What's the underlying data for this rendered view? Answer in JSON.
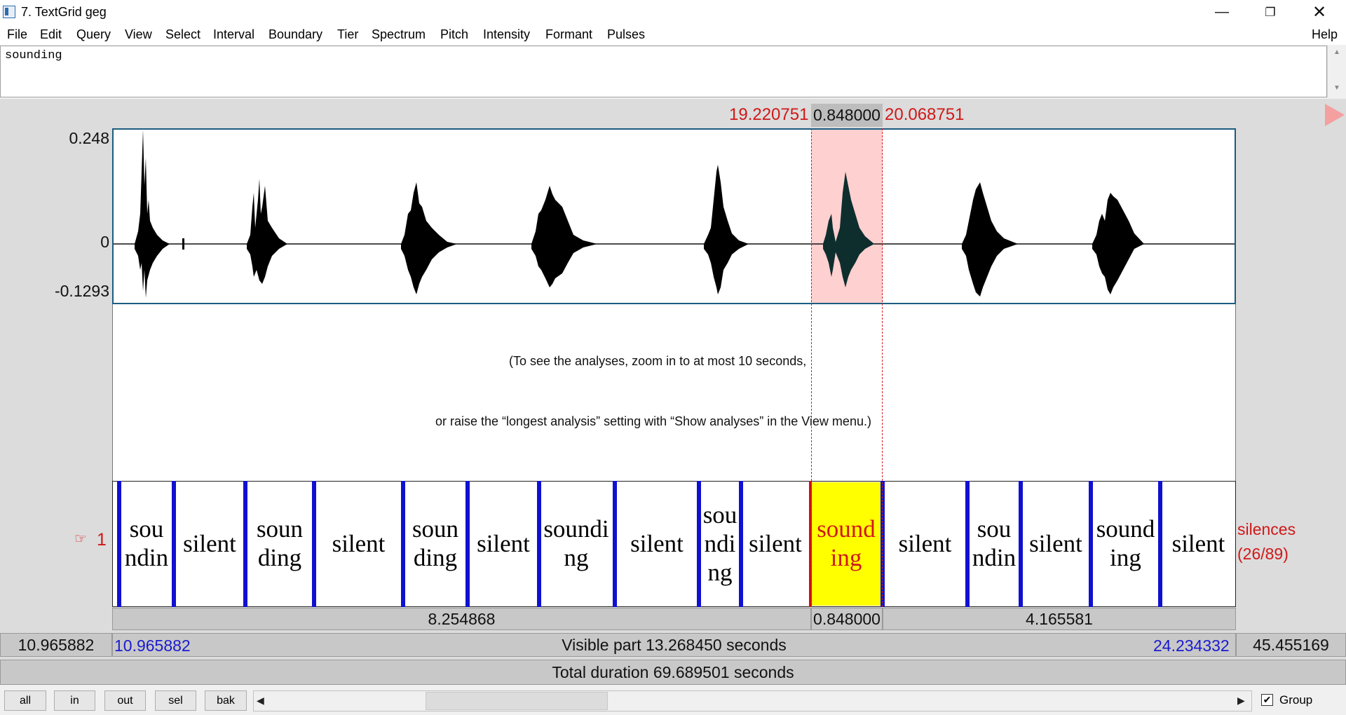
{
  "window": {
    "title": "7. TextGrid geg",
    "minimize_icon": "minimize-icon",
    "restore_icon": "restore-icon",
    "close_icon": "close-icon"
  },
  "menu": {
    "items": [
      "File",
      "Edit",
      "Query",
      "View",
      "Select",
      "Interval",
      "Boundary",
      "Tier",
      "Spectrum",
      "Pitch",
      "Intensity",
      "Formant",
      "Pulses"
    ],
    "help": "Help"
  },
  "text_field": {
    "value": "sounding"
  },
  "selection": {
    "start": "19.220751",
    "duration": "0.848000",
    "end": "20.068751"
  },
  "waveform": {
    "y_max": "0.248",
    "y_zero": "0",
    "y_min": "-0.1293"
  },
  "analysis_message": {
    "line1": "(To see the analyses, zoom in to at most 10 seconds,",
    "line2": "or raise the “longest analysis” setting with “Show analyses” in the View menu.)"
  },
  "tier": {
    "number": "1",
    "pointer_icon": "hand-pointer-icon",
    "name": "silences",
    "count": "(26/89)",
    "intervals": [
      "sou ndin",
      "silent",
      "soun ding",
      "silent",
      "soun ding",
      "silent",
      "soundi ng",
      "silent",
      "sou ndi ng",
      "silent",
      "sound ing",
      "silent",
      "sou ndin",
      "silent",
      "sound ing",
      "silent"
    ]
  },
  "durations": {
    "left": "8.254868",
    "selected": "0.848000",
    "right": "4.165581"
  },
  "visible": {
    "left_total": "10.965882",
    "start": "10.965882",
    "label": "Visible part 13.268450 seconds",
    "end": "24.234332",
    "right_total": "45.455169"
  },
  "total": {
    "label": "Total duration 69.689501 seconds"
  },
  "buttons": {
    "all": "all",
    "in": "in",
    "out": "out",
    "sel": "sel",
    "bak": "bak"
  },
  "group": {
    "label": "Group",
    "checked": true
  }
}
